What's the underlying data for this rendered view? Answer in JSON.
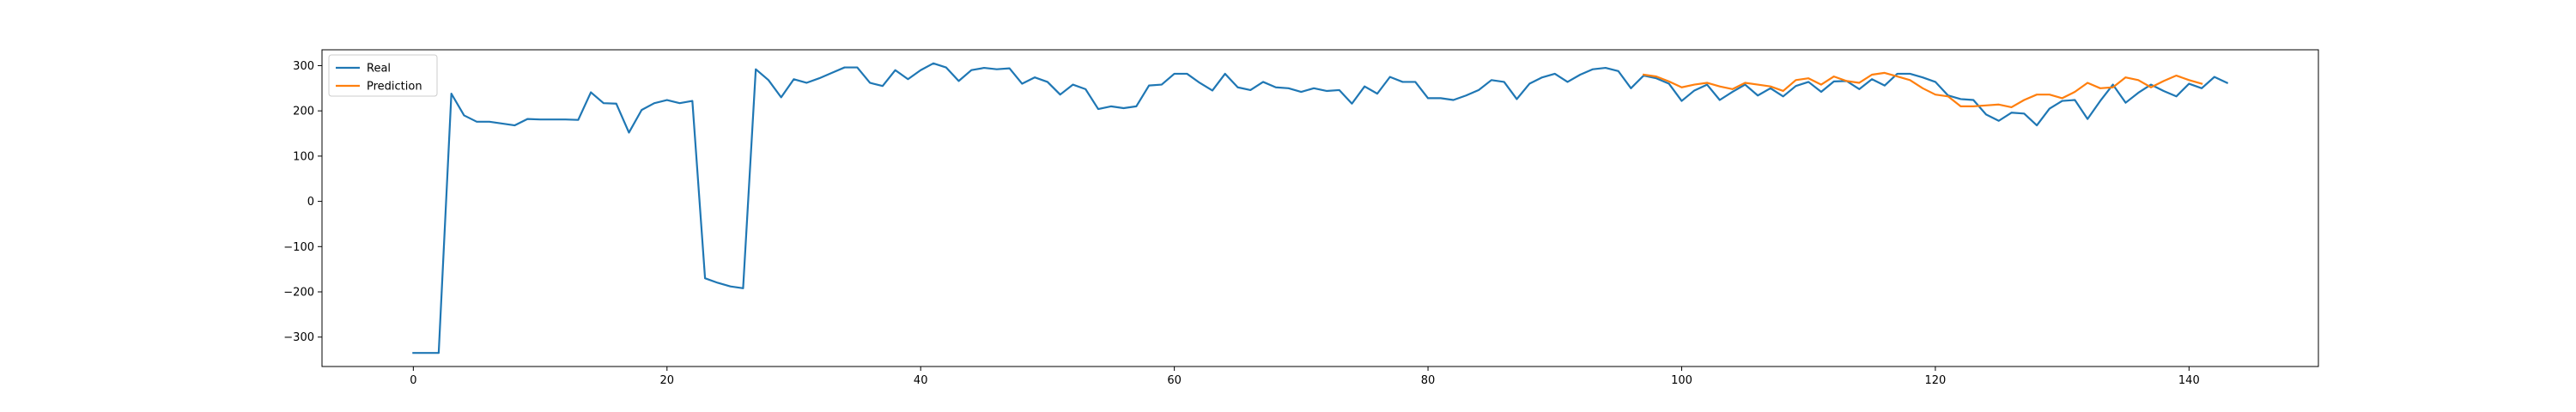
{
  "chart_data": {
    "type": "line",
    "title": "",
    "xlabel": "",
    "ylabel": "",
    "xlim": [
      -7.2,
      150.2
    ],
    "ylim": [
      -365,
      335
    ],
    "xticks": [
      0,
      20,
      40,
      60,
      80,
      100,
      120,
      140
    ],
    "yticks": [
      -300,
      -200,
      -100,
      0,
      100,
      200,
      300
    ],
    "grid": false,
    "legend_position": "top-left",
    "series": [
      {
        "name": "Real",
        "color": "#1f77b4",
        "x_start": 0,
        "values": [
          -335,
          -335,
          -335,
          238,
          190,
          176,
          176,
          172,
          168,
          182,
          181,
          181,
          181,
          180,
          241,
          217,
          216,
          152,
          202,
          217,
          224,
          217,
          222,
          -170,
          -180,
          -188,
          -192,
          292,
          268,
          230,
          270,
          262,
          272,
          284,
          296,
          296,
          262,
          255,
          290,
          270,
          290,
          305,
          296,
          266,
          290,
          295,
          292,
          294,
          260,
          274,
          264,
          236,
          258,
          248,
          204,
          210,
          206,
          210,
          256,
          258,
          282,
          282,
          262,
          245,
          282,
          252,
          246,
          264,
          252,
          250,
          242,
          250,
          244,
          246,
          216,
          254,
          238,
          275,
          264,
          264,
          228,
          228,
          224,
          234,
          246,
          268,
          264,
          226,
          260,
          274,
          282,
          264,
          280,
          292,
          295,
          288,
          250,
          278,
          272,
          260,
          222,
          245,
          258,
          224,
          242,
          258,
          234,
          250,
          232,
          255,
          264,
          242,
          265,
          266,
          248,
          270,
          256,
          282,
          282,
          274,
          264,
          234,
          226,
          224,
          192,
          178,
          196,
          194,
          168,
          205,
          222,
          224,
          182,
          222,
          258,
          218,
          240,
          258,
          244,
          232,
          260,
          250,
          275,
          262
        ]
      },
      {
        "name": "Prediction",
        "color": "#ff7f0e",
        "x_start": 97,
        "values": [
          280,
          276,
          265,
          252,
          258,
          262,
          254,
          248,
          262,
          258,
          254,
          244,
          268,
          272,
          258,
          276,
          266,
          262,
          280,
          284,
          276,
          268,
          250,
          236,
          232,
          210,
          210,
          212,
          214,
          208,
          224,
          236,
          236,
          228,
          242,
          262,
          250,
          252,
          274,
          268,
          252,
          266,
          278,
          268,
          260
        ]
      }
    ]
  }
}
